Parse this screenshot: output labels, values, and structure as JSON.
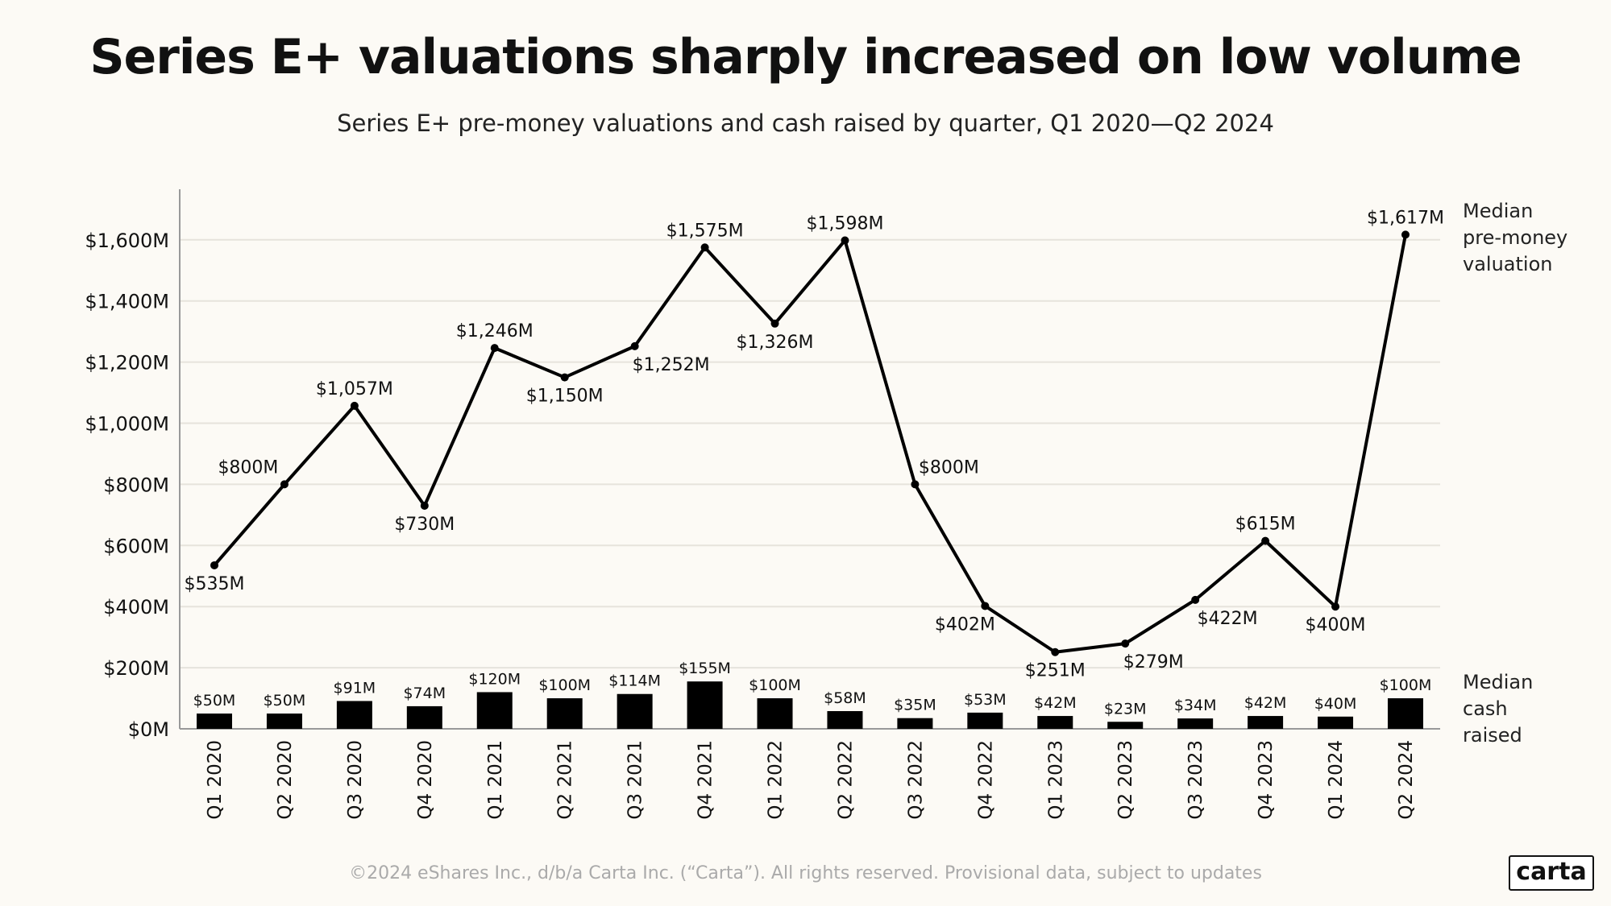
{
  "chart_data": {
    "type": "line+bar",
    "title": "Series E+ valuations sharply increased on low volume",
    "subtitle": "Series E+ pre-money valuations and cash raised by quarter, Q1 2020—Q2 2024",
    "categories": [
      "Q1 2020",
      "Q2 2020",
      "Q3 2020",
      "Q4 2020",
      "Q1 2021",
      "Q2 2021",
      "Q3 2021",
      "Q4 2021",
      "Q1 2022",
      "Q2 2022",
      "Q3 2022",
      "Q4 2022",
      "Q1 2023",
      "Q2 2023",
      "Q3 2023",
      "Q4 2023",
      "Q1 2024",
      "Q2 2024"
    ],
    "series": [
      {
        "name": "Median pre-money valuation",
        "kind": "line",
        "values": [
          535,
          800,
          1057,
          730,
          1246,
          1150,
          1252,
          1575,
          1326,
          1598,
          800,
          402,
          251,
          279,
          422,
          615,
          400,
          1617
        ],
        "labels": [
          "$535M",
          "$800M",
          "$1,057M",
          "$730M",
          "$1,246M",
          "$1,150M",
          "$1,252M",
          "$1,575M",
          "$1,326M",
          "$1,598M",
          "$800M",
          "$402M",
          "$251M",
          "$279M",
          "$422M",
          "$615M",
          "$400M",
          "$1,617M"
        ]
      },
      {
        "name": "Median cash raised",
        "kind": "bar",
        "values": [
          50,
          50,
          91,
          74,
          120,
          100,
          114,
          155,
          100,
          58,
          35,
          53,
          42,
          23,
          34,
          42,
          40,
          100
        ],
        "labels": [
          "$50M",
          "$50M",
          "$91M",
          "$74M",
          "$120M",
          "$100M",
          "$114M",
          "$155M",
          "$100M",
          "$58M",
          "$35M",
          "$53M",
          "$42M",
          "$23M",
          "$34M",
          "$42M",
          "$40M",
          "$100M"
        ]
      }
    ],
    "series_label_lines": {
      "line": [
        "Median",
        "pre-money",
        "valuation"
      ],
      "bar": [
        "Median",
        "cash",
        "raised"
      ]
    },
    "yticks": [
      0,
      200,
      400,
      600,
      800,
      1000,
      1200,
      1400,
      1600
    ],
    "ytick_labels": [
      "$0M",
      "$200M",
      "$400M",
      "$600M",
      "$800M",
      "$1,000M",
      "$1,200M",
      "$1,400M",
      "$1,600M"
    ],
    "ylim": [
      0,
      1750
    ],
    "unit": "$M",
    "grid": true,
    "colors": {
      "line": "#000000",
      "bar": "#000000",
      "grid": "#e6e3dc",
      "background": "#fcfaf5"
    }
  },
  "footer": "©2024 eShares Inc., d/b/a Carta Inc. (“Carta”). All rights reserved. Provisional data, subject to updates",
  "logo": "carta"
}
